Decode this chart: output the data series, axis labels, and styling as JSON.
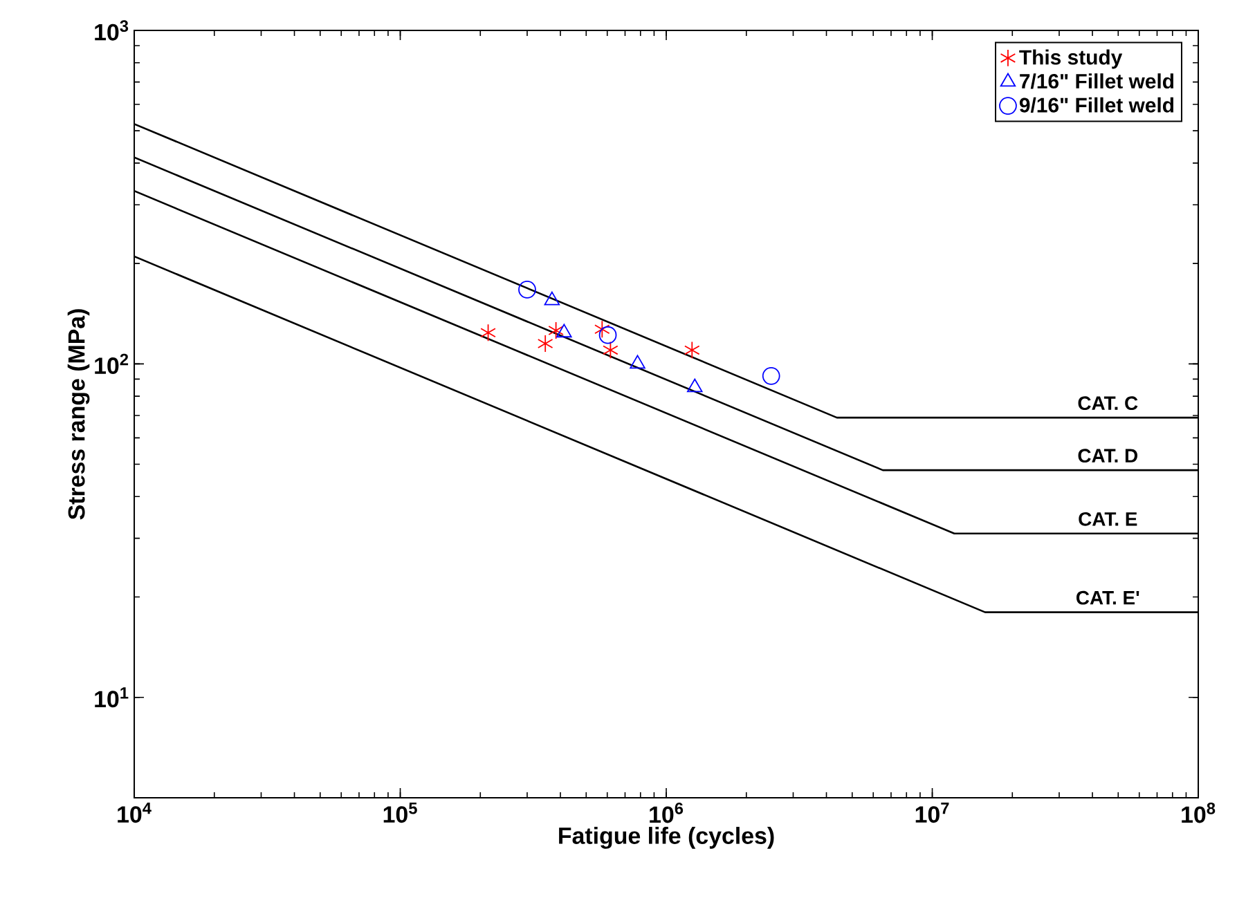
{
  "chart_data": {
    "type": "scatter",
    "xlabel": "Fatigue life (cycles)",
    "ylabel": "Stress range (MPa)",
    "log": "xy",
    "xlim": [
      10000,
      100000000
    ],
    "ylim": [
      5,
      1000
    ],
    "xticks": [
      {
        "value": 10000,
        "label": "10$^{4}$"
      },
      {
        "value": 100000,
        "label": "10$^{5}$"
      },
      {
        "value": 1000000,
        "label": "10$^{6}$"
      },
      {
        "value": 10000000,
        "label": "10$^{7}$"
      },
      {
        "value": 100000000,
        "label": "10$^{8}$"
      }
    ],
    "yticks": [
      {
        "value": 10,
        "label": "10$^{1}$"
      },
      {
        "value": 100,
        "label": "10$^{2}$"
      },
      {
        "value": 1000,
        "label": "10$^{3}$"
      }
    ],
    "grid": false,
    "legend": "top right",
    "series": [
      {
        "type": "line",
        "color": "#000000",
        "marker": "none",
        "x": [
          10000,
          4380000,
          100000000
        ],
        "values": [
          524,
          69,
          69
        ]
      },
      {
        "type": "line",
        "color": "#000000",
        "marker": "none",
        "x": [
          10000,
          6520000,
          100000000
        ],
        "values": [
          416,
          48,
          48
        ]
      },
      {
        "type": "line",
        "color": "#000000",
        "marker": "none",
        "x": [
          10000,
          12100000,
          100000000
        ],
        "values": [
          330,
          31,
          31
        ]
      },
      {
        "type": "line",
        "color": "#000000",
        "marker": "none",
        "x": [
          10000,
          15800000,
          100000000
        ],
        "values": [
          210,
          18,
          18
        ]
      },
      {
        "name": "This study",
        "color": "#ff0000",
        "marker": "cross",
        "x": [
          214000,
          351000,
          385000,
          574000,
          617000,
          1250000
        ],
        "values": [
          124,
          115,
          126,
          127,
          110,
          110
        ]
      },
      {
        "name": "7/16\" Fillet weld",
        "color": "#0000ff",
        "marker": "triangle",
        "x": [
          372000,
          413000,
          780000,
          1280000
        ],
        "values": [
          155,
          124,
          100,
          85
        ]
      },
      {
        "name": "9/16\" Fillet weld",
        "color": "#0000ff",
        "marker": "circle",
        "x": [
          300000,
          603000,
          2480000
        ],
        "values": [
          167,
          122,
          92
        ]
      }
    ],
    "annotations": [
      "CAT. C",
      "CAT. D",
      "CAT. E",
      "CAT. E'"
    ]
  }
}
